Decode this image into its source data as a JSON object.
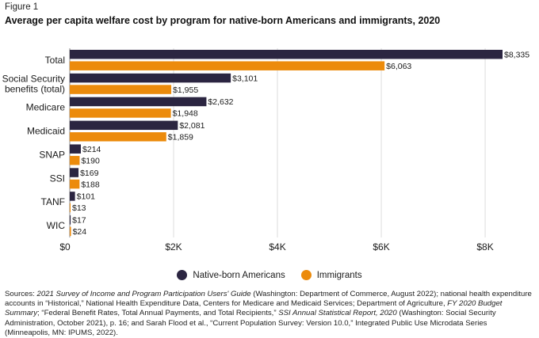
{
  "figure_label": "Figure 1",
  "title": "Average per capita welfare cost by program for native-born Americans and immigrants, 2020",
  "colors": {
    "native": "#2b2541",
    "immigrants": "#ec8b0c",
    "grid": "#dddddd",
    "axis": "#888888"
  },
  "legend": {
    "native_label": "Native-born Americans",
    "immigrants_label": "Immigrants"
  },
  "sources": {
    "p1": "Sources: ",
    "p2": "2021 Survey of Income and Program Participation Users' Guide",
    "p3": " (Washington: Department of Commerce, August 2022); national health expenditure accounts in “Historical,” National Health Expenditure Data, Centers for Medicare and Medicaid Services; Department of Agriculture, ",
    "p4": "FY 2020 Budget Summary",
    "p5": "; “Federal Benefit Rates, Total Annual Payments, and Total Recipients,” ",
    "p6": "SSI Annual Statistical Report, 2020",
    "p7": " (Washington: Social Security Administration, October 2021), p. 16; and Sarah Flood et al., “Current Population Survey: Version 10.0,” Integrated Public Use Microdata Series (Minneapolis, MN: IPUMS, 2022)."
  },
  "chart_data": {
    "type": "bar",
    "orientation": "horizontal",
    "categories": [
      [
        "Total"
      ],
      [
        "Social Security",
        "benefits (total)"
      ],
      [
        "Medicare"
      ],
      [
        "Medicaid"
      ],
      [
        "SNAP"
      ],
      [
        "SSI"
      ],
      [
        "TANF"
      ],
      [
        "WIC"
      ]
    ],
    "series": [
      {
        "name": "Native-born Americans",
        "values": [
          8335,
          3101,
          2632,
          2081,
          214,
          169,
          101,
          17
        ],
        "labels": [
          "$8,335",
          "$3,101",
          "$2,632",
          "$2,081",
          "$214",
          "$169",
          "$101",
          "$17"
        ]
      },
      {
        "name": "Immigrants",
        "values": [
          6063,
          1955,
          1948,
          1859,
          190,
          188,
          13,
          24
        ],
        "labels": [
          "$6,063",
          "$1,955",
          "$1,948",
          "$1,859",
          "$190",
          "$188",
          "$13",
          "$24"
        ]
      }
    ],
    "x_ticks": [
      0,
      2000,
      4000,
      6000,
      8000
    ],
    "x_tick_labels": [
      "$0",
      "$2K",
      "$4K",
      "$6K",
      "$8K"
    ],
    "xlim": [
      0,
      8335
    ],
    "grid": true,
    "legend_position": "bottom-center"
  }
}
